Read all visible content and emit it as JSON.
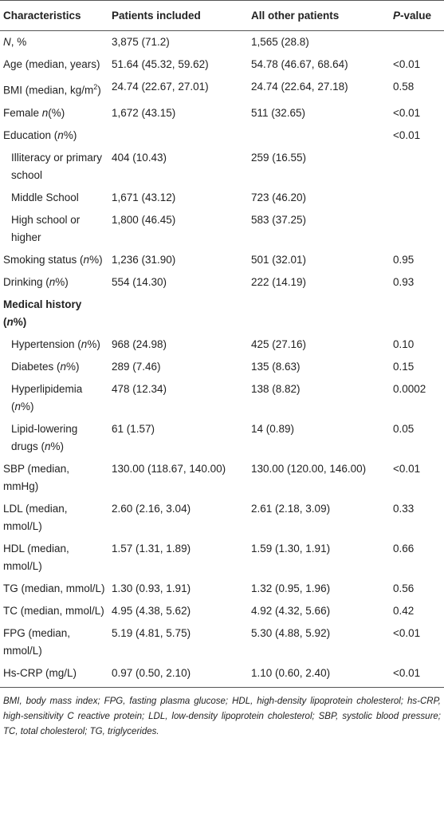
{
  "table": {
    "header": [
      "Characteristics",
      "Patients included",
      "All other patients",
      [
        {
          "italic": "P"
        },
        "-value"
      ]
    ],
    "rows": [
      {
        "label": [
          {
            "italic": "N"
          },
          ", %"
        ],
        "included": "3,875 (71.2)",
        "other": "1,565 (28.8)",
        "p": ""
      },
      {
        "label": [
          "Age (median, years)"
        ],
        "included": "51.64 (45.32, 59.62)",
        "other": "54.78 (46.67, 68.64)",
        "p": "<0.01"
      },
      {
        "label": [
          "BMI (median, kg/m",
          {
            "sup": "2"
          },
          ")"
        ],
        "included": "24.74 (22.67, 27.01)",
        "other": "24.74 (22.64, 27.18)",
        "p": "0.58"
      },
      {
        "label": [
          "Female ",
          {
            "italic": "n"
          },
          "(%)"
        ],
        "included": "1,672 (43.15)",
        "other": "511 (32.65)",
        "p": "<0.01"
      },
      {
        "label": [
          "Education (",
          {
            "italic": "n"
          },
          "%)"
        ],
        "included": "",
        "other": "",
        "p": "<0.01"
      },
      {
        "label": [
          "Illiteracy or primary school"
        ],
        "indent": true,
        "included": "404 (10.43)",
        "other": "259 (16.55)",
        "p": ""
      },
      {
        "label": [
          "Middle School"
        ],
        "indent": true,
        "included": "1,671 (43.12)",
        "other": "723 (46.20)",
        "p": ""
      },
      {
        "label": [
          "High school or higher"
        ],
        "indent": true,
        "included": "1,800 (46.45)",
        "other": "583 (37.25)",
        "p": ""
      },
      {
        "label": [
          "Smoking status (",
          {
            "italic": "n"
          },
          "%)"
        ],
        "included": "1,236 (31.90)",
        "other": "501 (32.01)",
        "p": "0.95"
      },
      {
        "label": [
          "Drinking (",
          {
            "italic": "n"
          },
          "%)"
        ],
        "included": "554 (14.30)",
        "other": "222 (14.19)",
        "p": "0.93"
      },
      {
        "label": [
          "Medical history (",
          {
            "italic": "n"
          },
          "%)"
        ],
        "bold": true,
        "included": "",
        "other": "",
        "p": ""
      },
      {
        "label": [
          "Hypertension (",
          {
            "italic": "n"
          },
          "%)"
        ],
        "indent": true,
        "included": "968 (24.98)",
        "other": "425 (27.16)",
        "p": "0.10"
      },
      {
        "label": [
          "Diabetes    (",
          {
            "italic": "n"
          },
          "%)"
        ],
        "indent": true,
        "included": "289 (7.46)",
        "other": "135 (8.63)",
        "p": "0.15"
      },
      {
        "label": [
          "Hyperlipidemia (",
          {
            "italic": "n"
          },
          "%)"
        ],
        "indent": true,
        "included": "478 (12.34)",
        "other": "138 (8.82)",
        "p": "0.0002"
      },
      {
        "label": [
          "Lipid-lowering drugs (",
          {
            "italic": "n"
          },
          "%)"
        ],
        "indent": true,
        "included": "61 (1.57)",
        "other": "14 (0.89)",
        "p": "0.05"
      },
      {
        "label": [
          "SBP (median, mmHg)"
        ],
        "included": "130.00 (118.67, 140.00)",
        "other": "130.00 (120.00, 146.00)",
        "p": "<0.01"
      },
      {
        "label": [
          "LDL (median, mmol/L)"
        ],
        "included": "2.60 (2.16, 3.04)",
        "other": "2.61 (2.18, 3.09)",
        "p": "0.33"
      },
      {
        "label": [
          "HDL (median, mmol/L)"
        ],
        "included": "1.57 (1.31, 1.89)",
        "other": "1.59 (1.30, 1.91)",
        "p": "0.66"
      },
      {
        "label": [
          "TG (median, mmol/L)"
        ],
        "included": "1.30 (0.93, 1.91)",
        "other": "1.32 (0.95, 1.96)",
        "p": "0.56"
      },
      {
        "label": [
          "TC (median, mmol/L)"
        ],
        "included": "4.95 (4.38, 5.62)",
        "other": "4.92 (4.32, 5.66)",
        "p": "0.42"
      },
      {
        "label": [
          "FPG (median, mmol/L)"
        ],
        "included": "5.19 (4.81, 5.75)",
        "other": "5.30 (4.88, 5.92)",
        "p": "<0.01"
      },
      {
        "label": [
          "Hs-CRP (mg/L)"
        ],
        "included": "0.97 (0.50, 2.10)",
        "other": "1.10 (0.60, 2.40)",
        "p": "<0.01"
      }
    ],
    "footnote": "BMI, body mass index; FPG, fasting plasma glucose; HDL, high-density lipoprotein cholesterol; hs-CRP, high-sensitivity C reactive protein; LDL, low-density lipoprotein cholesterol; SBP, systolic blood pressure; TC, total cholesterol; TG, triglycerides."
  }
}
